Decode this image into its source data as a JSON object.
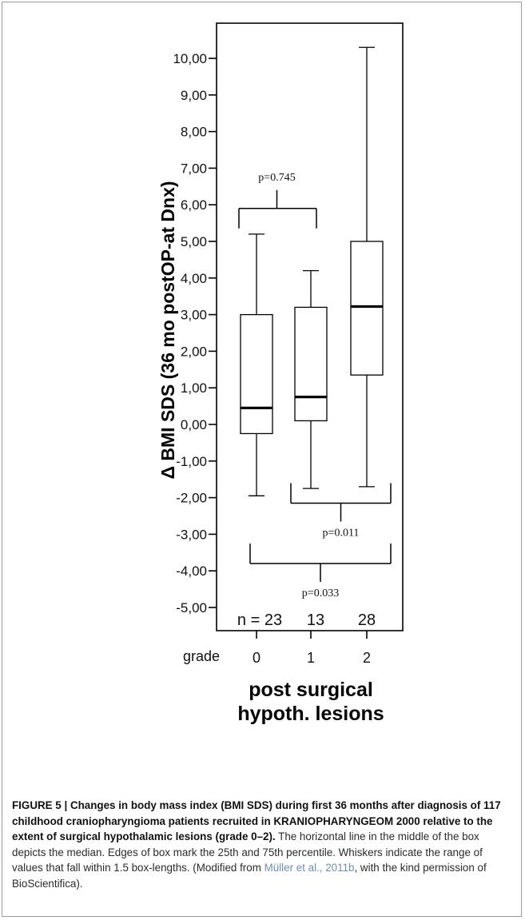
{
  "chart_data": {
    "type": "box",
    "ylabel": "Δ BMI SDS (36 mo postOP-at Dnx)",
    "xlabel_line1": "post surgical",
    "xlabel_line2": "hypoth. lesions",
    "x_axis_prefix": "grade",
    "ylim": [
      -5.5,
      10.8
    ],
    "yticks": [
      10,
      9,
      8,
      7,
      6,
      5,
      4,
      3,
      2,
      1,
      0,
      -1,
      -2,
      -3,
      -4,
      -5
    ],
    "ytick_labels": [
      "10,00",
      "9,00",
      "8,00",
      "7,00",
      "6,00",
      "5,00",
      "4,00",
      "3,00",
      "2,00",
      "1,00",
      "0,00",
      "-1,00",
      "-2,00",
      "-3,00",
      "-4,00",
      "-5,00"
    ],
    "n_prefix": "n = 23",
    "groups": [
      {
        "category": "0",
        "n_label": "n = 23",
        "min": -1.95,
        "q1": -0.25,
        "median": 0.45,
        "q3": 3.0,
        "max": 5.2
      },
      {
        "category": "1",
        "n_label": "13",
        "min": -1.75,
        "q1": 0.1,
        "median": 0.75,
        "q3": 3.2,
        "max": 4.2
      },
      {
        "category": "2",
        "n_label": "28",
        "min": -1.7,
        "q1": 1.35,
        "median": 3.22,
        "q3": 5.0,
        "max": 10.3
      }
    ],
    "comparisons": [
      {
        "groups": [
          0,
          1
        ],
        "label": "p=0.745",
        "y": 5.9,
        "position": "above"
      },
      {
        "groups": [
          1,
          2
        ],
        "label": "p=0.011",
        "y": -2.15,
        "position": "below"
      },
      {
        "groups": [
          0,
          2
        ],
        "label": "p=0.033",
        "y": -3.8,
        "position": "below"
      }
    ],
    "colors": {
      "box_fill": "#ffffff",
      "stroke": "#000000"
    }
  },
  "caption": {
    "figure_label": "FIGURE 5 | Changes in body mass index (BMI SDS) during first 36 months after diagnosis of 117 childhood craniopharyngioma patients recruited in KRANIOPHARYNGEOM 2000 relative to the extent of surgical hypothalamic lesions (grade 0–2).",
    "body_before_link": " The horizontal line in the middle of the box depicts the median. Edges of box mark the 25th and 75th percentile. Whiskers indicate the range of values that fall within 1.5 box-lengths. (Modified from ",
    "link_text": "Müller et al., 2011b",
    "body_after_link": ", with the kind permission of BioScientifica)."
  }
}
